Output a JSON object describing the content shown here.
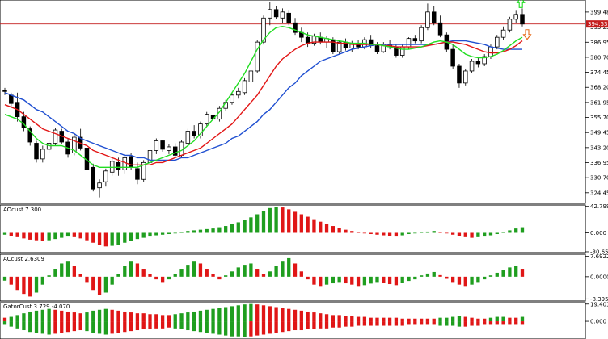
{
  "chart_data": {
    "type": "candlestick",
    "price_panel": {
      "y_ticks": [
        "399.48",
        "393.25",
        "386.95",
        "380.70",
        "374.45",
        "368.20",
        "361.95",
        "355.70",
        "349.45",
        "343.20",
        "336.95",
        "330.70",
        "324.45"
      ],
      "ylim": [
        320.7,
        403.8
      ],
      "current_price": "394.53",
      "current_price_value": 394.53,
      "colors": {
        "fast_ma": "#22dd22",
        "mid_ma": "#e21414",
        "slow_ma": "#1f4fd1",
        "price_line": "#c41e1e"
      },
      "candles": [
        [
          367.0,
          368.0,
          365.0,
          366.5
        ],
        [
          365.0,
          366.0,
          360.0,
          361.5
        ],
        [
          362.0,
          366.0,
          354.0,
          356.0
        ],
        [
          356.0,
          358.0,
          350.0,
          351.5
        ],
        [
          351.0,
          352.0,
          344.0,
          345.5
        ],
        [
          345.0,
          346.0,
          337.0,
          338.5
        ],
        [
          338.5,
          344.0,
          337.0,
          342.5
        ],
        [
          342.5,
          346.5,
          341.0,
          345.0
        ],
        [
          345.0,
          351.5,
          344.0,
          350.5
        ],
        [
          350.0,
          351.0,
          344.5,
          345.5
        ],
        [
          345.5,
          347.0,
          339.0,
          340.5
        ],
        [
          341.0,
          349.0,
          340.0,
          347.5
        ],
        [
          347.5,
          351.0,
          342.0,
          343.0
        ],
        [
          343.0,
          344.0,
          333.5,
          334.0
        ],
        [
          335.0,
          336.5,
          325.0,
          326.0
        ],
        [
          326.5,
          330.0,
          322.5,
          328.5
        ],
        [
          329.0,
          334.5,
          327.0,
          333.5
        ],
        [
          333.0,
          339.5,
          331.5,
          337.5
        ],
        [
          337.0,
          339.0,
          331.5,
          334.0
        ],
        [
          334.0,
          340.0,
          332.5,
          339.0
        ],
        [
          339.5,
          341.0,
          334.0,
          335.0
        ],
        [
          334.5,
          337.0,
          328.0,
          330.0
        ],
        [
          330.0,
          338.0,
          329.0,
          337.0
        ],
        [
          337.0,
          343.0,
          336.0,
          342.0
        ],
        [
          342.0,
          347.0,
          340.5,
          346.0
        ],
        [
          346.0,
          346.5,
          341.5,
          342.5
        ],
        [
          342.0,
          344.5,
          340.5,
          343.5
        ],
        [
          343.5,
          345.0,
          339.0,
          340.0
        ],
        [
          340.0,
          346.5,
          339.0,
          345.5
        ],
        [
          345.0,
          351.0,
          344.0,
          350.0
        ],
        [
          350.0,
          352.5,
          347.0,
          348.0
        ],
        [
          348.0,
          354.0,
          347.0,
          353.0
        ],
        [
          353.0,
          358.0,
          352.0,
          357.0
        ],
        [
          356.5,
          358.0,
          354.0,
          355.0
        ],
        [
          355.0,
          360.5,
          354.0,
          359.5
        ],
        [
          359.5,
          363.0,
          358.5,
          362.0
        ],
        [
          362.0,
          366.0,
          361.0,
          365.0
        ],
        [
          365.0,
          368.0,
          363.5,
          366.5
        ],
        [
          366.0,
          372.0,
          365.0,
          371.0
        ],
        [
          370.5,
          376.0,
          369.5,
          375.0
        ],
        [
          375.0,
          388.0,
          374.0,
          387.0
        ],
        [
          387.0,
          398.0,
          386.0,
          397.0
        ],
        [
          397.0,
          403.5,
          394.0,
          400.5
        ],
        [
          400.5,
          402.0,
          396.5,
          397.5
        ],
        [
          397.0,
          401.0,
          395.0,
          399.5
        ],
        [
          399.0,
          400.0,
          394.0,
          395.0
        ],
        [
          395.0,
          397.0,
          390.0,
          391.0
        ],
        [
          391.0,
          393.0,
          387.0,
          389.0
        ],
        [
          389.0,
          391.0,
          385.0,
          386.5
        ],
        [
          386.5,
          390.5,
          385.5,
          389.5
        ],
        [
          389.0,
          391.0,
          386.0,
          387.0
        ],
        [
          387.0,
          389.5,
          384.5,
          388.5
        ],
        [
          388.0,
          389.0,
          382.0,
          383.0
        ],
        [
          383.0,
          388.0,
          382.0,
          387.0
        ],
        [
          387.0,
          388.5,
          383.5,
          384.5
        ],
        [
          384.5,
          387.5,
          383.0,
          386.5
        ],
        [
          386.5,
          388.0,
          384.0,
          385.0
        ],
        [
          385.0,
          389.0,
          384.0,
          388.0
        ],
        [
          388.0,
          390.0,
          384.5,
          385.5
        ],
        [
          385.5,
          387.0,
          382.0,
          383.0
        ],
        [
          383.0,
          387.0,
          382.5,
          386.0
        ],
        [
          386.0,
          388.0,
          384.0,
          385.0
        ],
        [
          385.0,
          386.0,
          380.5,
          381.5
        ],
        [
          381.5,
          386.0,
          380.5,
          385.0
        ],
        [
          385.0,
          389.0,
          384.0,
          388.5
        ],
        [
          388.5,
          390.0,
          386.5,
          387.5
        ],
        [
          387.5,
          394.0,
          386.5,
          393.0
        ],
        [
          393.0,
          403.0,
          392.0,
          399.5
        ],
        [
          399.5,
          402.0,
          394.0,
          395.0
        ],
        [
          395.0,
          398.0,
          389.0,
          390.0
        ],
        [
          390.0,
          391.0,
          383.0,
          384.0
        ],
        [
          384.0,
          386.0,
          376.0,
          377.0
        ],
        [
          377.0,
          378.0,
          368.0,
          370.0
        ],
        [
          370.0,
          376.0,
          369.0,
          375.0
        ],
        [
          375.0,
          380.0,
          374.0,
          379.0
        ],
        [
          379.0,
          381.0,
          376.5,
          378.0
        ],
        [
          378.0,
          382.0,
          377.0,
          381.0
        ],
        [
          381.0,
          386.0,
          380.0,
          385.0
        ],
        [
          385.0,
          390.0,
          384.0,
          389.0
        ],
        [
          389.0,
          393.5,
          388.0,
          392.0
        ],
        [
          392.0,
          397.5,
          391.0,
          396.5
        ],
        [
          396.5,
          400.0,
          395.0,
          398.5
        ],
        [
          398.5,
          401.0,
          393.5,
          394.5
        ]
      ],
      "ma_fast": [
        357,
        356,
        355,
        353,
        350,
        347,
        345,
        344,
        344,
        344,
        343,
        342,
        340,
        338,
        336,
        335,
        335,
        335,
        335,
        335,
        335,
        335,
        336,
        337,
        338,
        339,
        340,
        341,
        342,
        344,
        346,
        349,
        352,
        355,
        358,
        362,
        366,
        370,
        374,
        379,
        384,
        388,
        391,
        393,
        393.5,
        393,
        392,
        391,
        390,
        389.5,
        389,
        388.5,
        388,
        387.5,
        387,
        386.5,
        386.5,
        386.5,
        386,
        386,
        385.5,
        385,
        384.5,
        384,
        384,
        384.5,
        385,
        386,
        387,
        387.5,
        387,
        386,
        384,
        382,
        381,
        380.5,
        380.5,
        381,
        382,
        383.5,
        385.5,
        387.5,
        389
      ],
      "ma_mid": [
        361,
        360,
        359,
        357,
        355,
        353,
        351,
        350,
        349,
        348,
        347,
        346,
        345,
        344,
        342,
        341,
        340,
        339,
        338,
        337,
        336,
        336,
        336,
        336,
        337,
        337,
        338,
        339,
        340,
        341,
        342,
        343,
        345,
        347,
        349,
        351,
        353,
        356,
        359,
        362,
        365,
        369,
        373,
        377,
        380,
        382,
        384,
        385.5,
        386.5,
        387,
        387,
        387,
        387,
        386.5,
        386.5,
        386,
        386,
        386,
        386,
        386,
        385.5,
        385.5,
        385,
        385,
        385,
        385,
        385,
        385.5,
        386,
        386.5,
        387,
        387,
        386.5,
        386,
        385,
        384,
        383,
        382.5,
        382.5,
        383,
        384,
        385.5,
        387.5
      ],
      "ma_slow": [
        366,
        365,
        364,
        363,
        361,
        359,
        358,
        356,
        354,
        352,
        350,
        349,
        347,
        346,
        345,
        344,
        343,
        342,
        341,
        340,
        340,
        339,
        339,
        338,
        338,
        338,
        338,
        338,
        339,
        339,
        340,
        341,
        342,
        343,
        344,
        345,
        347,
        348,
        350,
        352,
        354,
        357,
        359,
        362,
        365,
        368,
        370,
        373,
        375,
        377,
        379,
        380,
        381,
        382,
        383,
        384,
        384.5,
        385,
        385.5,
        386,
        386,
        386,
        386,
        386,
        386,
        386,
        386,
        386,
        386,
        386.5,
        387,
        387.5,
        387.5,
        387.5,
        387,
        386.5,
        386,
        385,
        384.5,
        384,
        384,
        384,
        384
      ]
    },
    "indicators": [
      {
        "title": "AOcust 7.300",
        "y_ticks": [
          "42.799",
          "0.000",
          "-30.654"
        ],
        "ylim": [
          -32,
          45
        ],
        "colors": {
          "up": "#1f9e1f",
          "down": "#e01616"
        },
        "values": [
          -3,
          -5,
          -7,
          -9,
          -11,
          -12,
          -13,
          -12,
          -10,
          -8,
          -6,
          -7,
          -9,
          -12,
          -16,
          -20,
          -22,
          -21,
          -19,
          -16,
          -13,
          -10,
          -8,
          -6,
          -4,
          -3,
          -2,
          -1,
          1,
          3,
          4,
          5,
          6,
          7,
          9,
          11,
          14,
          17,
          21,
          25,
          30,
          35,
          40,
          42,
          41,
          38,
          34,
          30,
          26,
          22,
          18,
          14,
          11,
          8,
          5,
          3,
          1,
          -1,
          -2,
          -3,
          -4,
          -5,
          -6,
          -4,
          -2,
          -1,
          1,
          2,
          3,
          1,
          -1,
          -3,
          -5,
          -7,
          -8,
          -7,
          -6,
          -4,
          -2,
          1,
          4,
          7,
          9
        ]
      },
      {
        "title": "ACcust 2.6309",
        "y_ticks": [
          "7.6922",
          "0.0000",
          "-8.3956"
        ],
        "ylim": [
          -9.2,
          8.5
        ],
        "colors": {
          "up": "#1f9e1f",
          "down": "#e01616"
        },
        "values": [
          -1.5,
          -3,
          -5,
          -6.5,
          -7.5,
          -6,
          -3,
          0.5,
          3,
          5,
          6,
          4,
          1,
          -2,
          -5,
          -7,
          -6,
          -3,
          1,
          4,
          6,
          5,
          3,
          1,
          -1,
          -2,
          -1,
          1,
          3,
          4.5,
          6,
          5,
          3,
          1,
          -1,
          0.5,
          2,
          3.5,
          4.5,
          5,
          3,
          1,
          2,
          4,
          6,
          7,
          5,
          2,
          -1,
          -3,
          -3.5,
          -3,
          -2.5,
          -2,
          -2.5,
          -3,
          -3.5,
          -3.2,
          -2.6,
          -2,
          -2.4,
          -2.8,
          -3.2,
          -2.4,
          -1.6,
          -1,
          0.5,
          1.2,
          1.8,
          0.6,
          -0.8,
          -2,
          -3,
          -3.5,
          -3,
          -2,
          -1,
          0.5,
          1.5,
          2.5,
          3.5,
          4.2,
          3
        ]
      },
      {
        "title": "GatorCust 3.729 -4.070",
        "y_ticks": [
          "19.401",
          "0.000"
        ],
        "ylim": [
          -20,
          21
        ],
        "colors": {
          "up": "#1f9e1f",
          "down": "#e01616"
        },
        "upper": [
          4,
          5,
          7,
          9,
          11,
          12,
          13,
          14,
          13,
          12,
          11,
          10,
          9,
          10,
          12,
          13,
          14,
          13,
          12,
          11,
          10,
          9,
          9,
          8,
          8,
          7,
          7,
          8,
          9,
          10,
          11,
          12,
          13,
          14,
          15,
          16,
          17,
          18,
          19,
          19.5,
          19,
          18,
          17,
          16,
          15,
          14,
          13,
          12,
          11,
          10,
          9,
          8,
          7,
          7,
          6,
          6,
          5,
          5,
          4,
          4,
          4,
          4,
          4,
          3,
          3,
          3,
          3,
          3,
          3,
          4,
          4,
          5,
          6,
          5,
          4,
          3,
          3,
          4,
          5,
          5,
          4,
          4,
          5
        ],
        "lower": [
          -4,
          -6,
          -8,
          -10,
          -12,
          -13,
          -14,
          -15,
          -14,
          -13,
          -12,
          -11,
          -10,
          -11,
          -13,
          -14,
          -15,
          -14,
          -13,
          -12,
          -11,
          -10,
          -9,
          -9,
          -8,
          -8,
          -7,
          -8,
          -9,
          -10,
          -11,
          -12,
          -13,
          -14,
          -15,
          -16,
          -17,
          -17,
          -18,
          -17,
          -16,
          -15,
          -14,
          -13,
          -12,
          -11,
          -10,
          -10,
          -9,
          -9,
          -8,
          -8,
          -7,
          -7,
          -6,
          -6,
          -5,
          -5,
          -5,
          -5,
          -5,
          -5,
          -5,
          -5,
          -4,
          -4,
          -4,
          -4,
          -4,
          -5,
          -5,
          -5,
          -6,
          -6,
          -5,
          -5,
          -4,
          -4,
          -4,
          -4,
          -4,
          -4,
          -4
        ],
        "upper_direction": [
          0,
          1,
          1,
          1,
          1,
          1,
          1,
          1,
          0,
          0,
          0,
          0,
          0,
          1,
          1,
          1,
          1,
          0,
          0,
          0,
          0,
          0,
          0,
          0,
          0,
          0,
          0,
          1,
          1,
          1,
          1,
          1,
          1,
          1,
          1,
          1,
          1,
          1,
          1,
          1,
          0,
          0,
          0,
          0,
          0,
          0,
          0,
          0,
          0,
          0,
          0,
          0,
          0,
          0,
          0,
          0,
          0,
          0,
          0,
          0,
          0,
          0,
          0,
          0,
          0,
          0,
          0,
          0,
          0,
          1,
          1,
          1,
          1,
          0,
          0,
          0,
          0,
          1,
          1,
          1,
          0,
          0,
          1
        ],
        "lower_direction": [
          1,
          1,
          1,
          1,
          1,
          1,
          1,
          1,
          0,
          0,
          0,
          0,
          0,
          1,
          1,
          1,
          1,
          0,
          0,
          0,
          0,
          0,
          0,
          0,
          0,
          0,
          0,
          1,
          1,
          1,
          1,
          1,
          1,
          1,
          1,
          1,
          1,
          1,
          1,
          0,
          0,
          0,
          0,
          0,
          0,
          0,
          0,
          0,
          0,
          0,
          0,
          0,
          0,
          0,
          0,
          0,
          0,
          0,
          0,
          0,
          0,
          0,
          0,
          0,
          0,
          0,
          0,
          0,
          0,
          1,
          1,
          1,
          1,
          0,
          0,
          0,
          0,
          0,
          0,
          0,
          0,
          0,
          0
        ]
      }
    ],
    "arrows": [
      {
        "index": 81,
        "direction": "up",
        "color": "#22dd22"
      },
      {
        "index": 82,
        "direction": "down",
        "color": "#e56a1a"
      }
    ]
  }
}
